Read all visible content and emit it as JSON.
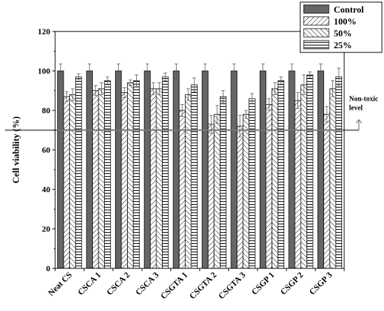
{
  "chart_data": {
    "type": "bar",
    "ylabel": "Cell viability (%)",
    "xlabel": "",
    "ylim": [
      0,
      120
    ],
    "yticks": [
      0,
      20,
      40,
      60,
      80,
      100,
      120
    ],
    "grid": false,
    "legend_position": "top-right",
    "categories": [
      "Neat CS",
      "CSCA 1",
      "CSCA 2",
      "CSCA 3",
      "CSGTA 1",
      "CSGTA 2",
      "CSGTA 3",
      "CSGP 1",
      "CSGP 2",
      "CSGP 3"
    ],
    "series": [
      {
        "name": "Control",
        "color": "#666666",
        "pattern": "solid",
        "values": [
          100,
          100,
          100,
          100,
          100,
          100,
          100,
          100,
          100,
          100
        ],
        "errors": [
          3.5,
          3.5,
          3.5,
          3.5,
          3.5,
          3.5,
          3.5,
          3.5,
          3.5,
          3.5
        ]
      },
      {
        "name": "100%",
        "color": "#000000",
        "pattern": "forward-diagonal",
        "values": [
          87,
          90,
          89,
          91,
          80,
          73,
          72,
          83,
          85,
          78
        ],
        "errors": [
          2.5,
          2.5,
          2.5,
          3,
          3,
          4.5,
          5.5,
          3,
          4,
          4
        ]
      },
      {
        "name": "50%",
        "color": "#000000",
        "pattern": "backward-diagonal",
        "values": [
          88,
          91,
          94,
          91,
          88,
          78,
          78,
          91,
          93,
          91
        ],
        "errors": [
          3,
          3,
          1.5,
          3,
          3,
          4.5,
          2,
          3,
          5,
          4
        ]
      },
      {
        "name": "25%",
        "color": "#000000",
        "pattern": "horizontal",
        "values": [
          97,
          95,
          95,
          97,
          93,
          87,
          86,
          95,
          98,
          97
        ],
        "errors": [
          1.5,
          2,
          3,
          2,
          3.5,
          3,
          2.5,
          2,
          1.5,
          4.5
        ]
      }
    ],
    "reference_line": {
      "value": 70,
      "label_lines": [
        "Non-toxic",
        "level"
      ],
      "color": "#777777"
    }
  }
}
